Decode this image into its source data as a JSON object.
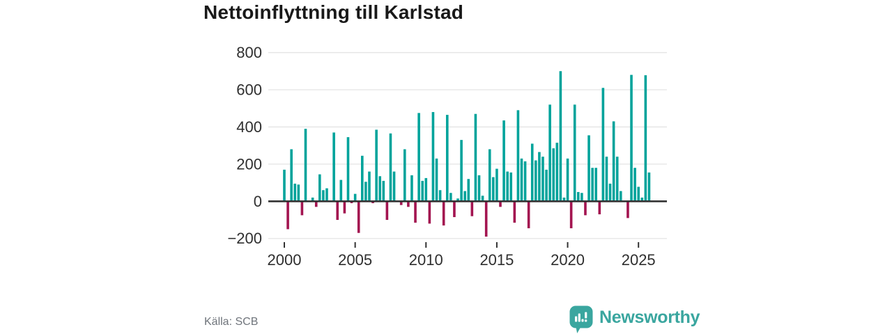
{
  "title": "Nettoinflyttning till Karlstad",
  "source": "Källa: SCB",
  "branding": {
    "name": "Newsworthy",
    "icon": "newsworthy-speech-bubble-chart-icon"
  },
  "colors": {
    "bar_positive": "#00a39b",
    "bar_negative": "#a31450",
    "axis_line": "#333333",
    "gridline": "#e4e4e4",
    "tick_label": "#2f2f2f",
    "title_text": "#191919",
    "source_text": "#6f747b",
    "brand_teal": "#3aa69f"
  },
  "chart_data": {
    "type": "bar",
    "title": "Nettoinflyttning till Karlstad",
    "frequency": "quarterly",
    "start_year": 2000,
    "start_quarter": 1,
    "ylim": [
      -200,
      800
    ],
    "y_ticks": [
      800,
      600,
      400,
      200,
      0,
      -200
    ],
    "y_tick_labels": [
      "800",
      "600",
      "400",
      "200",
      "0",
      "−200"
    ],
    "x_tick_years": [
      2000,
      2005,
      2010,
      2015,
      2020,
      2025
    ],
    "x_tick_labels": [
      "2000",
      "2005",
      "2010",
      "2015",
      "2020",
      "2025"
    ],
    "grid": "horizontal",
    "legend": "none",
    "values": [
      170,
      -150,
      280,
      95,
      90,
      -75,
      390,
      0,
      20,
      -30,
      145,
      60,
      70,
      0,
      370,
      -100,
      115,
      -65,
      345,
      -10,
      40,
      -170,
      245,
      105,
      160,
      -10,
      385,
      135,
      110,
      -100,
      365,
      160,
      0,
      -20,
      280,
      -30,
      140,
      -115,
      475,
      110,
      125,
      -120,
      480,
      230,
      60,
      -130,
      465,
      45,
      -85,
      15,
      330,
      55,
      120,
      -80,
      470,
      140,
      30,
      -190,
      280,
      130,
      175,
      -30,
      435,
      160,
      155,
      -115,
      490,
      230,
      215,
      -145,
      310,
      220,
      265,
      240,
      170,
      520,
      285,
      315,
      700,
      20,
      230,
      -145,
      520,
      50,
      45,
      -75,
      355,
      180,
      180,
      -70,
      610,
      240,
      95,
      430,
      240,
      55,
      0,
      -90,
      680,
      180,
      78,
      20,
      678,
      155
    ]
  }
}
